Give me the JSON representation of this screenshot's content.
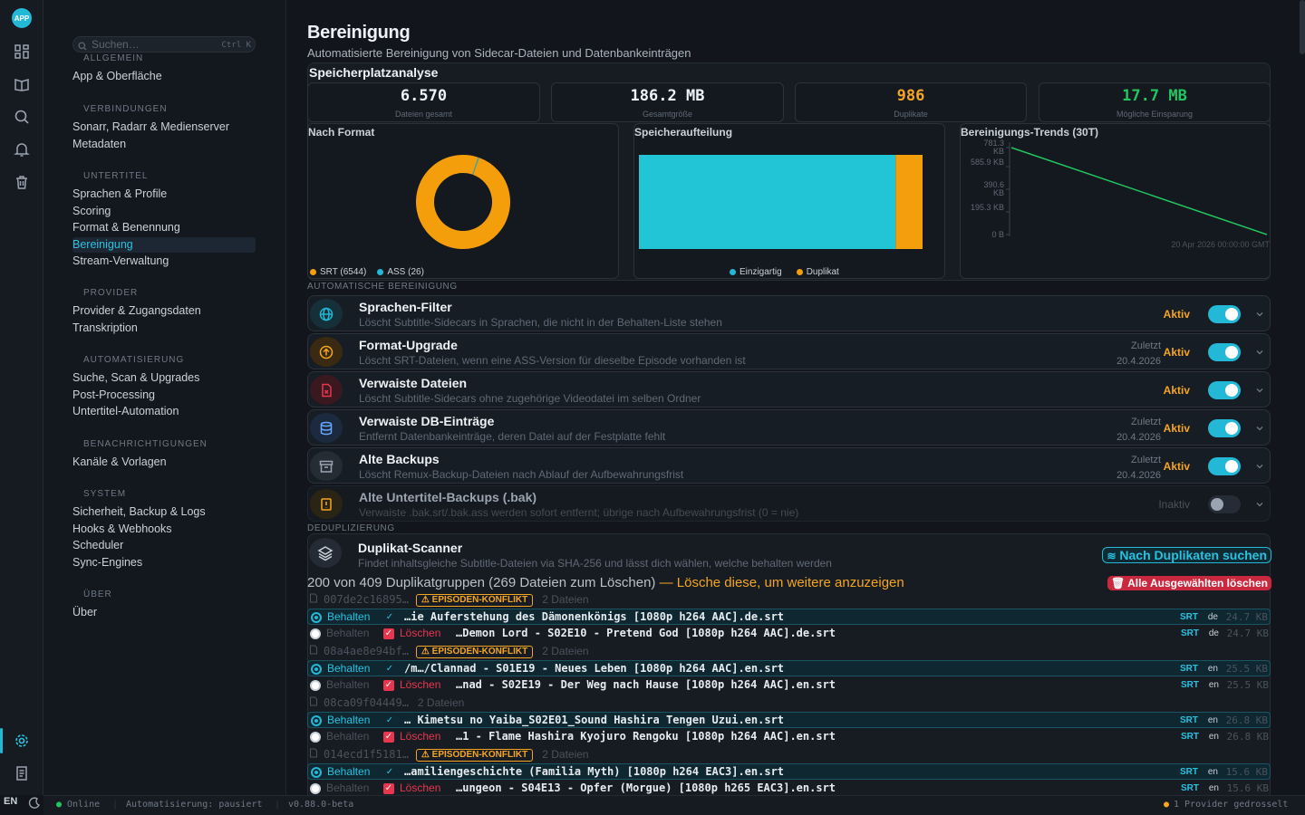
{
  "rail": {
    "logo": "APP",
    "lang": "EN"
  },
  "sidebar": {
    "search_placeholder": "Suchen…",
    "search_shortcut": "Ctrl K",
    "groups": [
      {
        "title": "ALLGEMEIN",
        "items": [
          "App & Oberfläche"
        ]
      },
      {
        "title": "VERBINDUNGEN",
        "items": [
          "Sonarr, Radarr & Medienserver",
          "Metadaten"
        ]
      },
      {
        "title": "UNTERTITEL",
        "items": [
          "Sprachen & Profile",
          "Scoring",
          "Format & Benennung",
          "Bereinigung",
          "Stream-Verwaltung"
        ]
      },
      {
        "title": "PROVIDER",
        "items": [
          "Provider & Zugangsdaten",
          "Transkription"
        ]
      },
      {
        "title": "AUTOMATISIERUNG",
        "items": [
          "Suche, Scan & Upgrades",
          "Post-Processing",
          "Untertitel-Automation"
        ]
      },
      {
        "title": "BENACHRICHTIGUNGEN",
        "items": [
          "Kanäle & Vorlagen"
        ]
      },
      {
        "title": "SYSTEM",
        "items": [
          "Sicherheit, Backup & Logs",
          "Hooks & Webhooks",
          "Scheduler",
          "Sync-Engines"
        ]
      },
      {
        "title": "ÜBER",
        "items": [
          "Über"
        ]
      }
    ],
    "active": "Bereinigung"
  },
  "page": {
    "title": "Bereinigung",
    "subtitle": "Automatisierte Bereinigung von Sidecar-Dateien und Datenbankeinträgen"
  },
  "storage": {
    "title": "Speicherplatzanalyse",
    "stats": [
      {
        "value": "6.570",
        "label": "Dateien gesamt",
        "color": "#eef2f6"
      },
      {
        "value": "186.2 MB",
        "label": "Gesamtgröße",
        "color": "#eef2f6"
      },
      {
        "value": "986",
        "label": "Duplikate",
        "color": "#f5a524"
      },
      {
        "value": "17.7 MB",
        "label": "Mögliche Einsparung",
        "color": "#22c55e"
      }
    ],
    "format_title": "Nach Format",
    "format_legend": [
      "SRT (6544)",
      "ASS (26)"
    ],
    "alloc_title": "Speicheraufteilung",
    "alloc_legend": [
      "Einzigartig",
      "Duplikat"
    ],
    "trend_title": "Bereinigungs-Trends (30T)",
    "trend_ticks": [
      "781.3 KB",
      "585.9 KB",
      "390.6 KB",
      "195.3 KB",
      "0 B"
    ],
    "trend_x_label": "20 Apr 2026 00:00:00 GMT"
  },
  "chart_data": [
    {
      "type": "pie",
      "title": "Nach Format",
      "labels": [
        "SRT",
        "ASS"
      ],
      "values": [
        6544,
        26
      ],
      "colors": [
        "#f59e0b",
        "#22b8d6"
      ]
    },
    {
      "type": "bar",
      "title": "Speicheraufteilung",
      "categories": [
        "Einzigartig",
        "Duplikat"
      ],
      "values": [
        168.5,
        17.7
      ],
      "colors": [
        "#22c5d6",
        "#f59e0b"
      ]
    },
    {
      "type": "line",
      "title": "Bereinigungs-Trends (30T)",
      "yticks": [
        "781.3 KB",
        "585.9 KB",
        "390.6 KB",
        "195.3 KB",
        "0 B"
      ],
      "y_kb": [
        781.3,
        0
      ],
      "x": [
        "",
        "20 Apr 2026 00:00:00 GMT"
      ],
      "color": "#22c55e"
    }
  ],
  "auto": {
    "label": "AUTOMATISCHE BEREINIGUNG",
    "rules": [
      {
        "title": "Sprachen-Filter",
        "desc": "Löscht Subtitle-Sidecars in Sprachen, die nicht in der Behalten-Liste stehen",
        "last1": "",
        "last2": "",
        "status": "Aktiv",
        "on": true,
        "icon": "globe-icon",
        "color": "#22b8d6"
      },
      {
        "title": "Format-Upgrade",
        "desc": "Löscht SRT-Dateien, wenn eine ASS-Version für dieselbe Episode vorhanden ist",
        "last1": "Zuletzt",
        "last2": "20.4.2026",
        "status": "Aktiv",
        "on": true,
        "icon": "upgrade-icon",
        "color": "#f5a524"
      },
      {
        "title": "Verwaiste Dateien",
        "desc": "Löscht Subtitle-Sidecars ohne zugehörige Videodatei im selben Ordner",
        "last1": "",
        "last2": "",
        "status": "Aktiv",
        "on": true,
        "icon": "orphan-file-icon",
        "color": "#e8364f"
      },
      {
        "title": "Verwaiste DB-Einträge",
        "desc": "Entfernt Datenbankeinträge, deren Datei auf der Festplatte fehlt",
        "last1": "Zuletzt",
        "last2": "20.4.2026",
        "status": "Aktiv",
        "on": true,
        "icon": "database-icon",
        "color": "#6aa7ff"
      },
      {
        "title": "Alte Backups",
        "desc": "Löscht Remux-Backup-Dateien nach Ablauf der Aufbewahrungsfrist",
        "last1": "Zuletzt",
        "last2": "20.4.2026",
        "status": "Aktiv",
        "on": true,
        "icon": "archive-icon",
        "color": "#9aa4b0"
      },
      {
        "title": "Alte Untertitel-Backups (.bak)",
        "desc": "Verwaiste .bak.srt/.bak.ass werden sofort entfernt; übrige nach Aufbewahrungsfrist (0 = nie)",
        "last1": "",
        "last2": "",
        "status": "Inaktiv",
        "on": false,
        "icon": "warning-file-icon",
        "color": "#f5a524"
      }
    ]
  },
  "dedup": {
    "label": "DEDUPLIZIERUNG",
    "title": "Duplikat-Scanner",
    "desc": "Findet inhaltsgleiche Subtitle-Dateien via SHA-256 und lässt dich wählen, welche behalten werden",
    "scan_button": "Nach Duplikaten suchen",
    "info_main": "200 von 409 Duplikatgruppen (269 Dateien zum Löschen)",
    "info_hint": " — Lösche diese, um weitere anzuzeigen",
    "delete_button": "Alle Ausgewählten löschen",
    "keep_label": "Behalten",
    "delete_label": "Löschen",
    "groups": [
      {
        "hash": "007de2c16895…",
        "badge": "EPISODEN-KONFLIKT",
        "count": "2 Dateien",
        "files": [
          {
            "keep": true,
            "name": "…ie Auferstehung des Dämonenkönigs [1080p h264 AAC].de.srt",
            "fmt": "SRT",
            "lang": "de",
            "size": "24.7 KB"
          },
          {
            "keep": false,
            "name": "…Demon Lord - S02E10 - Pretend God [1080p h264 AAC].de.srt",
            "fmt": "SRT",
            "lang": "de",
            "size": "24.7 KB"
          }
        ]
      },
      {
        "hash": "08a4ae8e94bf…",
        "badge": "EPISODEN-KONFLIKT",
        "count": "2 Dateien",
        "files": [
          {
            "keep": true,
            "name": "/m…/Clannad - S01E19 - Neues Leben [1080p h264 AAC].en.srt",
            "fmt": "SRT",
            "lang": "en",
            "size": "25.5 KB"
          },
          {
            "keep": false,
            "name": "…nad - S02E19 - Der Weg nach Hause [1080p h264 AAC].en.srt",
            "fmt": "SRT",
            "lang": "en",
            "size": "25.5 KB"
          }
        ]
      },
      {
        "hash": "08ca09f04449…",
        "badge": "",
        "count": "2 Dateien",
        "files": [
          {
            "keep": true,
            "name": "… Kimetsu no Yaiba_S02E01_Sound Hashira Tengen Uzui.en.srt",
            "fmt": "SRT",
            "lang": "en",
            "size": "26.8 KB"
          },
          {
            "keep": false,
            "name": "…1 - Flame Hashira Kyojuro Rengoku [1080p h264 AAC].en.srt",
            "fmt": "SRT",
            "lang": "en",
            "size": "26.8 KB"
          }
        ]
      },
      {
        "hash": "014ecd1f5181…",
        "badge": "EPISODEN-KONFLIKT",
        "count": "2 Dateien",
        "files": [
          {
            "keep": true,
            "name": "…amiliengeschichte (Familia Myth) [1080p h264 EAC3].en.srt",
            "fmt": "SRT",
            "lang": "en",
            "size": "15.6 KB"
          },
          {
            "keep": false,
            "name": "…ungeon - S04E13 - Opfer (Morgue) [1080p h265 EAC3].en.srt",
            "fmt": "SRT",
            "lang": "en",
            "size": "15.6 KB"
          }
        ]
      }
    ]
  },
  "footer": {
    "status": "Online",
    "automation": "Automatisierung: pausiert",
    "version": "v0.88.0-beta",
    "providers": "1 Provider gedrosselt"
  }
}
